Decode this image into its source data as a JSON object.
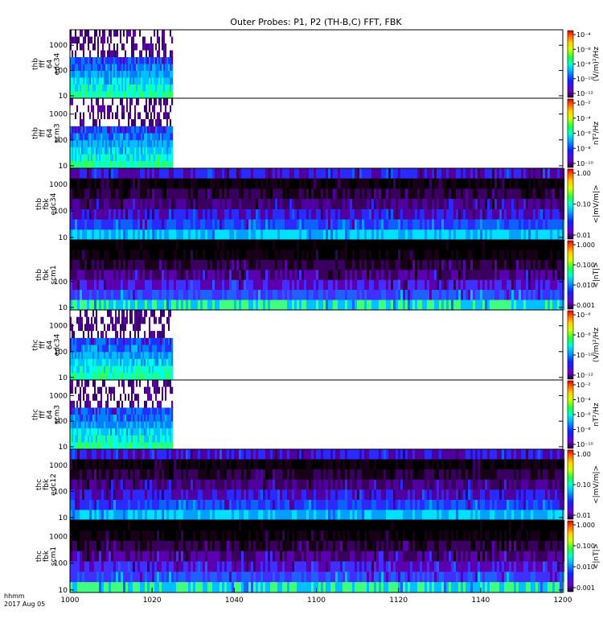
{
  "chart_data": {
    "type": "heatmap",
    "title": "Outer Probes: P1, P2 (TH-B,C) FFT, FBK",
    "x_ticks": [
      "1000",
      "1020",
      "1040",
      "1100",
      "1120",
      "1140",
      "1200"
    ],
    "x_corner": {
      "line1": "hhmm",
      "line2": "2017 Aug 05"
    },
    "x_units": "hhmm",
    "date": "2017 Aug 05",
    "panels": [
      {
        "ylabel": [
          "thb",
          "fff",
          "64",
          "edc34"
        ],
        "yticks": [
          "1000",
          "100",
          "10"
        ],
        "data_end_hhmm": "1025",
        "colorbar": {
          "label": "(V/m)²/Hz",
          "ticks": [
            "10⁻⁴",
            "10⁻⁶",
            "10⁻⁸",
            "10⁻¹⁰",
            "10⁻¹²"
          ]
        }
      },
      {
        "ylabel": [
          "thb",
          "fff",
          "64",
          "scm3"
        ],
        "yticks": [
          "1000",
          "100",
          "10"
        ],
        "data_end_hhmm": "1025",
        "colorbar": {
          "label": "nT²/Hz",
          "ticks": [
            "10⁻²",
            "10⁻⁴",
            "10⁻⁶",
            "10⁻⁸",
            "10⁻¹⁰"
          ]
        }
      },
      {
        "ylabel": [
          "thb",
          "fbk",
          "edc34"
        ],
        "yticks": [
          "1000",
          "100",
          "10"
        ],
        "data_end_hhmm": "1200",
        "colorbar": {
          "label": "<|mV/m|>",
          "ticks": [
            "1.00",
            "0.10",
            "0.01"
          ]
        }
      },
      {
        "ylabel": [
          "thb",
          "fbk",
          "scm1"
        ],
        "yticks": [
          "100",
          "10"
        ],
        "data_end_hhmm": "1200",
        "colorbar": {
          "label": "<|nT|>",
          "ticks": [
            "1.000",
            "0.100",
            "0.010",
            "0.001"
          ]
        }
      },
      {
        "ylabel": [
          "thc",
          "fff",
          "64",
          "edc34"
        ],
        "yticks": [
          "1000",
          "100",
          "10"
        ],
        "data_end_hhmm": "1025",
        "colorbar": {
          "label": "(V/m)²/Hz",
          "ticks": [
            "10⁻⁶",
            "10⁻⁸",
            "10⁻¹⁰",
            "10⁻¹²"
          ]
        }
      },
      {
        "ylabel": [
          "thc",
          "fff",
          "64",
          "scm3"
        ],
        "yticks": [
          "1000",
          "100",
          "10"
        ],
        "data_end_hhmm": "1025",
        "colorbar": {
          "label": "nT²/Hz",
          "ticks": [
            "10⁻²",
            "10⁻⁴",
            "10⁻⁶",
            "10⁻⁸",
            "10⁻¹⁰"
          ]
        }
      },
      {
        "ylabel": [
          "thc",
          "fbk",
          "edc12"
        ],
        "yticks": [
          "1000",
          "100",
          "10"
        ],
        "data_end_hhmm": "1200",
        "colorbar": {
          "label": "<|mV/m|>",
          "ticks": [
            "1.00",
            "0.10",
            "0.01"
          ]
        }
      },
      {
        "ylabel": [
          "thc",
          "fbk",
          "scm1"
        ],
        "yticks": [
          "1000",
          "100",
          "10"
        ],
        "data_end_hhmm": "1200",
        "colorbar": {
          "label": "<|nT|>",
          "ticks": [
            "1.000",
            "0.100",
            "0.010",
            "0.001"
          ]
        }
      }
    ]
  }
}
